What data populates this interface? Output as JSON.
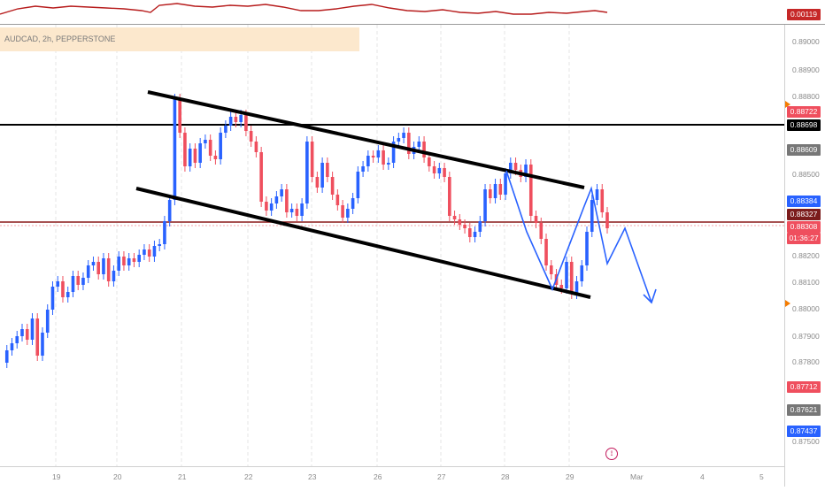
{
  "symbol": {
    "label": "AUDCAD, 2h, PEPPERSTONE"
  },
  "indicator": {
    "value": "0.00119",
    "color": "#c62828"
  },
  "price_axis": {
    "labels": [
      "0.89000",
      "0.88900",
      "0.88800",
      "0.88500",
      "0.88200",
      "0.88100",
      "0.88000",
      "0.87900",
      "0.87800",
      "0.87500"
    ]
  },
  "price_tags": [
    {
      "name": "high-price-tag",
      "text": "0.88722",
      "color": "#ef4f5e"
    },
    {
      "name": "resistance-line-tag",
      "text": "0.88698",
      "color": "#000000"
    },
    {
      "name": "gray-price-tag-1",
      "text": "0.88609",
      "color": "#777777"
    },
    {
      "name": "blue-price-tag",
      "text": "0.88384",
      "color": "#2962ff"
    },
    {
      "name": "support-line-tag",
      "text": "0.88327",
      "color": "#7b1c1c"
    },
    {
      "name": "current-price-tag",
      "text": "0.88308",
      "color": "#ef4f5e"
    },
    {
      "name": "countdown-tag",
      "text": "01:36:27",
      "color": "#ef4f5e"
    },
    {
      "name": "low-price-tag",
      "text": "0.87712",
      "color": "#ef4f5e"
    },
    {
      "name": "gray-price-tag-2",
      "text": "0.87621",
      "color": "#777777"
    },
    {
      "name": "bottom-blue-price-tag",
      "text": "0.87437",
      "color": "#2962ff"
    }
  ],
  "date_axis": {
    "labels": [
      "19",
      "20",
      "21",
      "22",
      "23",
      "26",
      "27",
      "28",
      "29",
      "Mar",
      "4",
      "5"
    ]
  },
  "event_icon": "calendar-event-icon",
  "colors": {
    "up": "#2962ff",
    "down": "#ef4f5e",
    "grid": "#e8e8e8",
    "line": "#000000"
  }
}
